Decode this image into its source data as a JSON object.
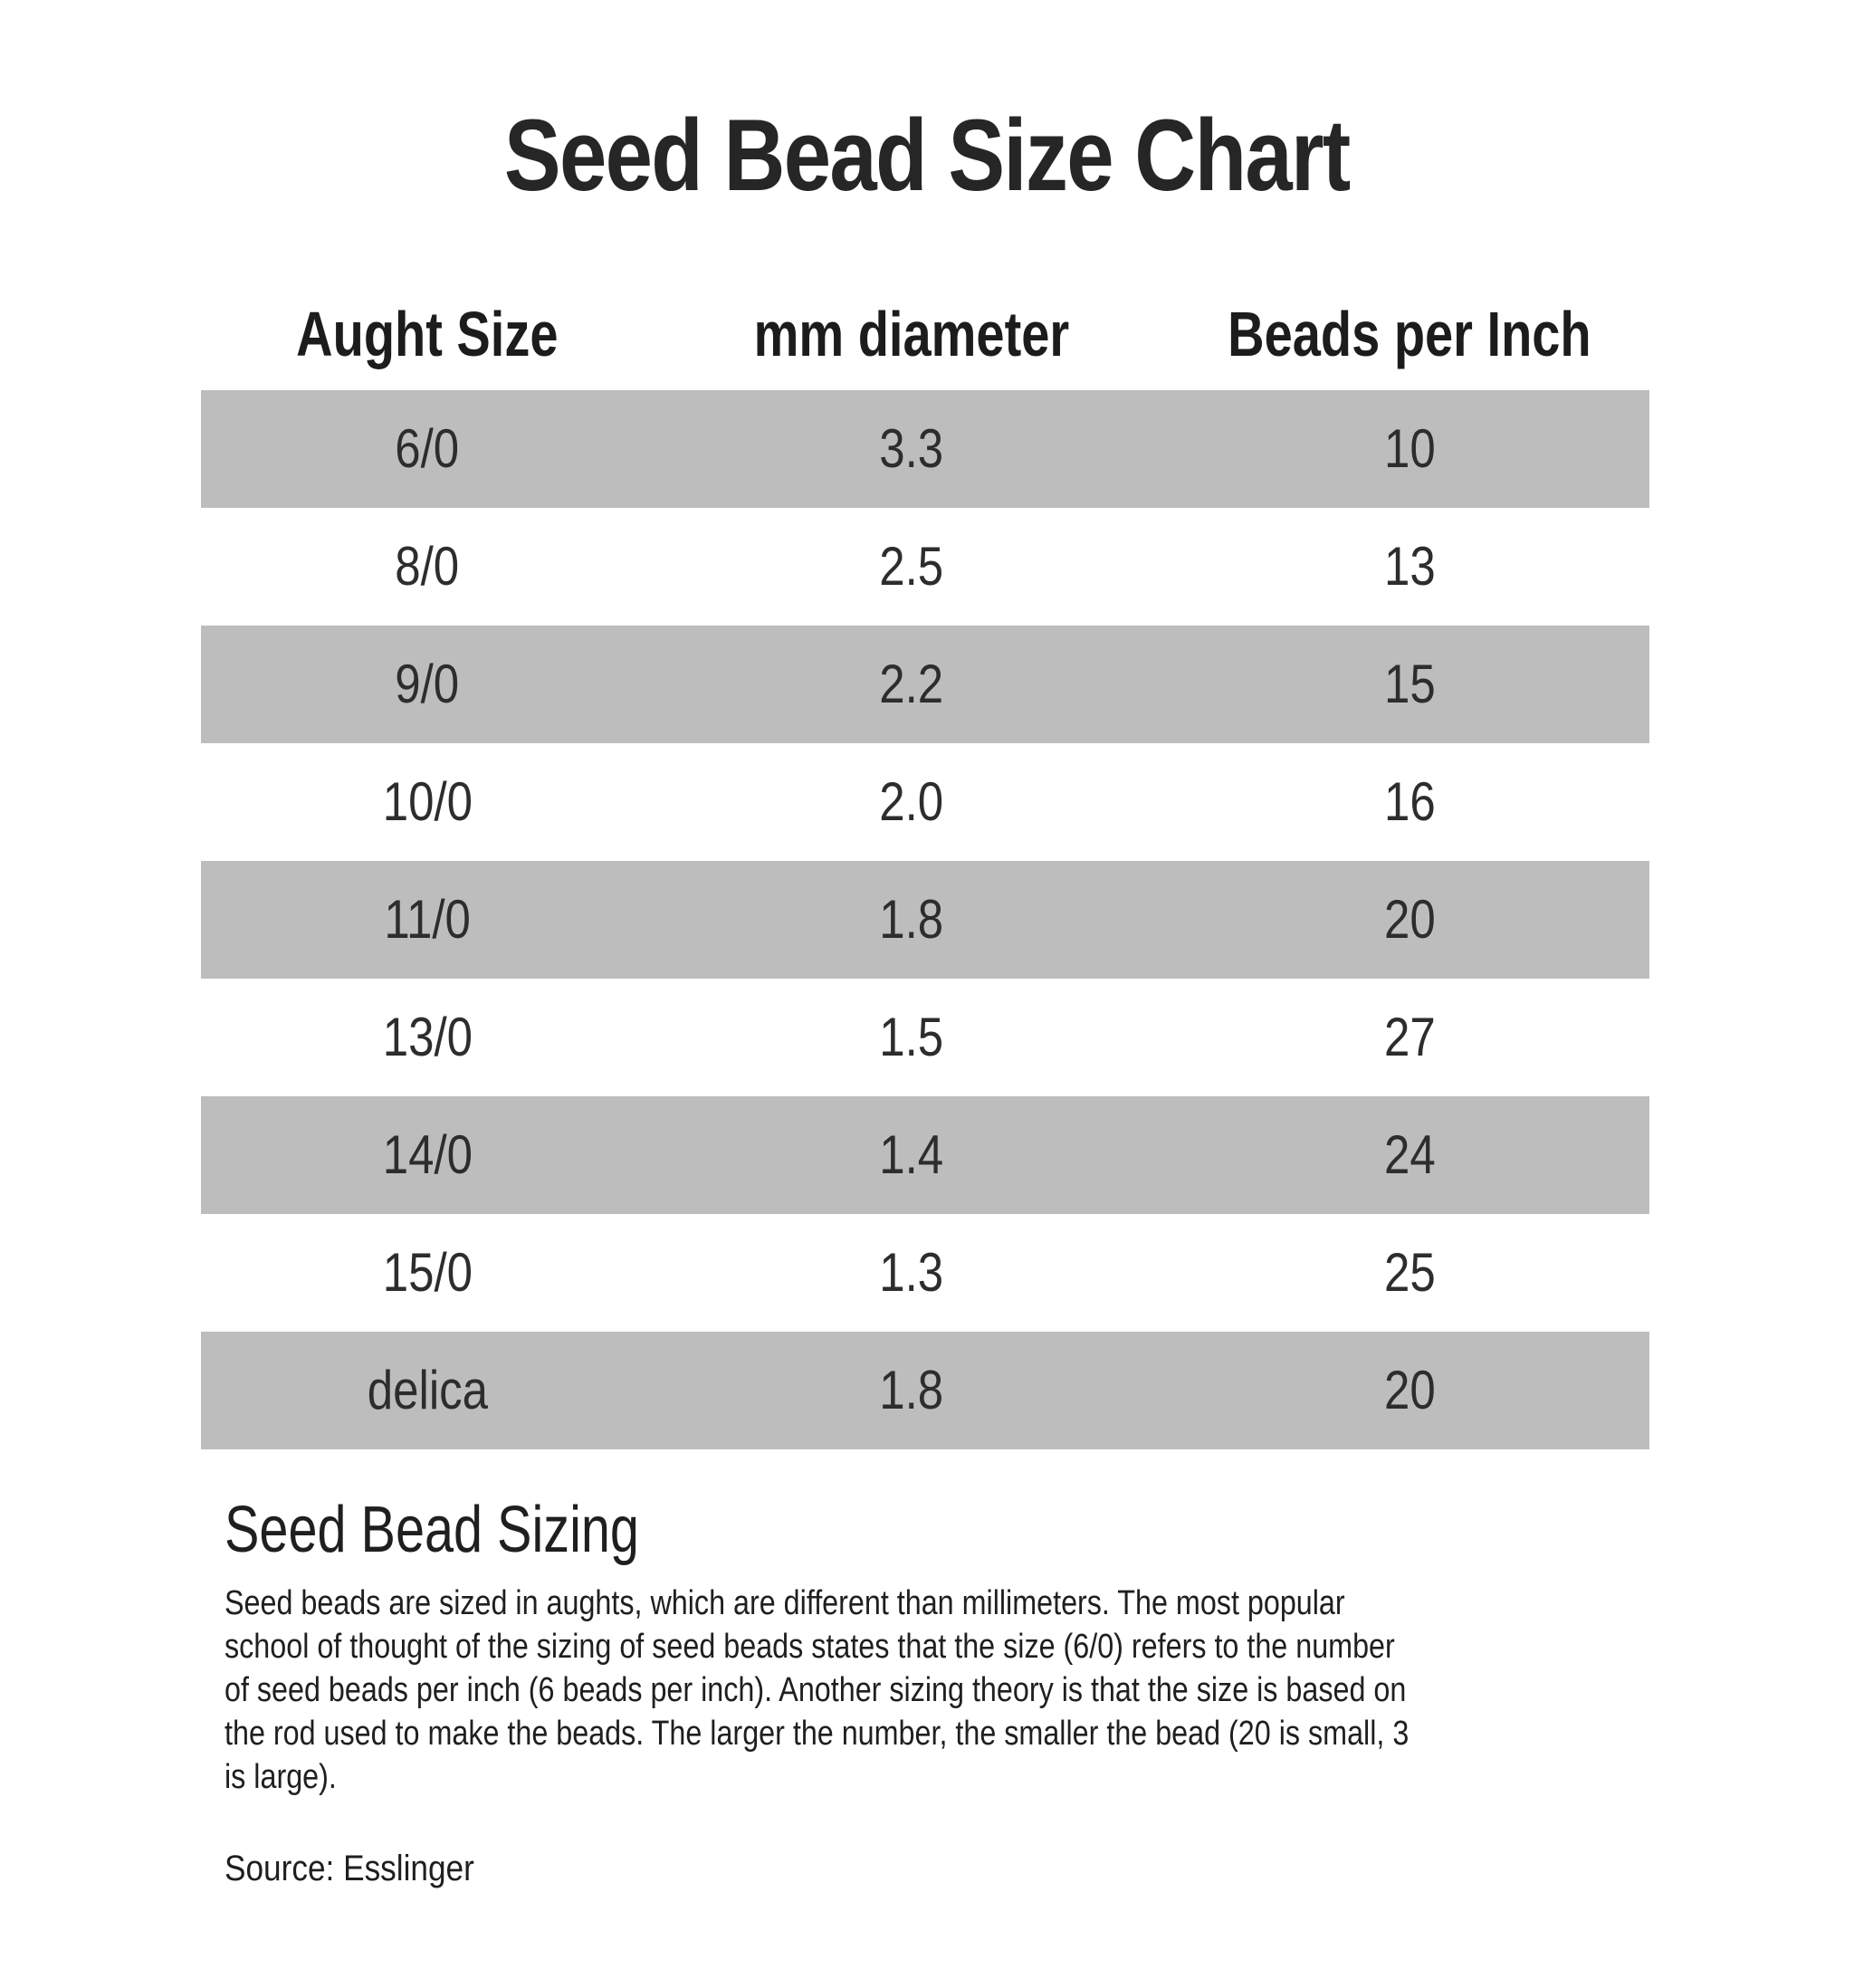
{
  "page": {
    "title": "Seed Bead Size Chart"
  },
  "chart_data": {
    "type": "table",
    "title": "Seed Bead Size Chart",
    "columns": [
      "Aught Size",
      "mm diameter",
      "Beads per Inch"
    ],
    "rows": [
      [
        "6/0",
        "3.3",
        "10"
      ],
      [
        "8/0",
        "2.5",
        "13"
      ],
      [
        "9/0",
        "2.2",
        "15"
      ],
      [
        "10/0",
        "2.0",
        "16"
      ],
      [
        "11/0",
        "1.8",
        "20"
      ],
      [
        "13/0",
        "1.5",
        "27"
      ],
      [
        "14/0",
        "1.4",
        "24"
      ],
      [
        "15/0",
        "1.3",
        "25"
      ],
      [
        "delica",
        "1.8",
        "20"
      ]
    ],
    "shaded_row_indices": [
      0,
      2,
      4,
      6,
      8
    ],
    "layout": {
      "banding": "alternating row shading, first row shaded",
      "grid": "none",
      "alignment": "all cells centered"
    }
  },
  "section": {
    "heading": "Seed Bead Sizing",
    "body_lines": [
      "Seed beads are sized in aughts, which are different than millimeters. The most popular",
      "school of thought of the sizing of seed beads states that the size (6/0) refers to the number",
      "of seed beads per inch (6 beads per inch). Another sizing theory is that the size is based on",
      "the rod used to make the beads. The larger the number, the smaller the bead (20 is small, 3",
      "is large)."
    ]
  },
  "source": {
    "label": "Source: Esslinger"
  },
  "colors": {
    "row_shaded": "#bdbdbd",
    "row_plain": "#ffffff",
    "title_text": "#262626",
    "header_text": "#1c1c1c",
    "cell_text": "#2d2d2d",
    "body_text": "#1f1f1f"
  }
}
